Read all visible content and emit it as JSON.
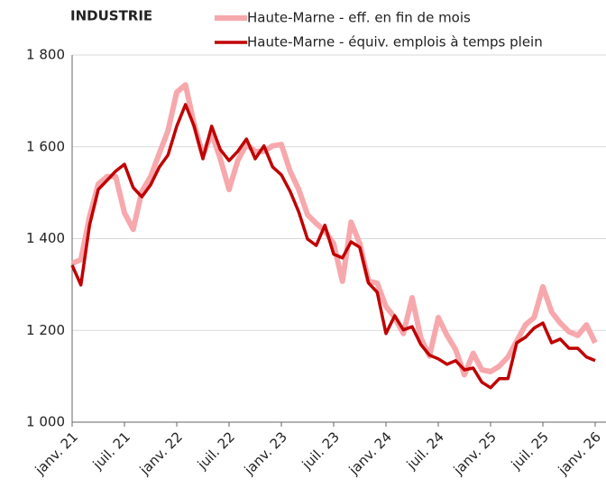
{
  "chart_data": {
    "type": "line",
    "title": "INDUSTRIE",
    "categories": [
      "janv. 21",
      null,
      null,
      null,
      null,
      null,
      "juil. 21",
      null,
      null,
      null,
      null,
      null,
      "janv. 22",
      null,
      null,
      null,
      null,
      null,
      "juil. 22",
      null,
      null,
      null,
      null,
      null,
      "janv. 23",
      null,
      null,
      null,
      null,
      null,
      "juil. 23",
      null,
      null,
      null,
      null,
      null,
      "janv. 24",
      null,
      null,
      null,
      null,
      null,
      "juil. 24",
      null,
      null,
      null,
      null,
      null,
      "janv. 25",
      null,
      null,
      null,
      null,
      null,
      "juil. 25",
      null,
      null,
      null,
      null,
      null,
      "janv. 26"
    ],
    "series": [
      {
        "name": "Haute-Marne - eff. en fin de mois",
        "color": "#f7a8ac",
        "values": [
          1346,
          1354,
          1448,
          1519,
          1535,
          1535,
          1456,
          1420,
          1503,
          1535,
          1586,
          1635,
          1719,
          1735,
          1649,
          1582,
          1629,
          1574,
          1507,
          1570,
          1605,
          1590,
          1590,
          1602,
          1605,
          1547,
          1507,
          1452,
          1433,
          1417,
          1389,
          1307,
          1436,
          1389,
          1307,
          1303,
          1252,
          1228,
          1193,
          1271,
          1183,
          1144,
          1228,
          1189,
          1158,
          1103,
          1150,
          1114,
          1110,
          1122,
          1142,
          1177,
          1212,
          1228,
          1295,
          1240,
          1216,
          1197,
          1189,
          1212,
          1173
        ]
      },
      {
        "name": "Haute-Marne - équiv. emplois à temps plein",
        "color": "#c00000",
        "values": [
          1342,
          1299,
          1429,
          1507,
          1527,
          1547,
          1562,
          1511,
          1491,
          1517,
          1556,
          1582,
          1645,
          1692,
          1645,
          1574,
          1645,
          1594,
          1570,
          1590,
          1617,
          1574,
          1602,
          1556,
          1539,
          1503,
          1458,
          1399,
          1385,
          1429,
          1366,
          1358,
          1393,
          1381,
          1303,
          1283,
          1193,
          1232,
          1201,
          1208,
          1169,
          1146,
          1138,
          1126,
          1134,
          1114,
          1118,
          1087,
          1075,
          1095,
          1095,
          1173,
          1185,
          1205,
          1216,
          1173,
          1181,
          1161,
          1161,
          1142,
          1134
        ]
      }
    ],
    "ylim": [
      1000,
      1800
    ],
    "yticks": [
      {
        "value": 1000,
        "label": "1 000"
      },
      {
        "value": 1200,
        "label": "1 200"
      },
      {
        "value": 1400,
        "label": "1 400"
      },
      {
        "value": 1600,
        "label": "1 600"
      },
      {
        "value": 1800,
        "label": "1 800"
      }
    ],
    "grid": true
  }
}
